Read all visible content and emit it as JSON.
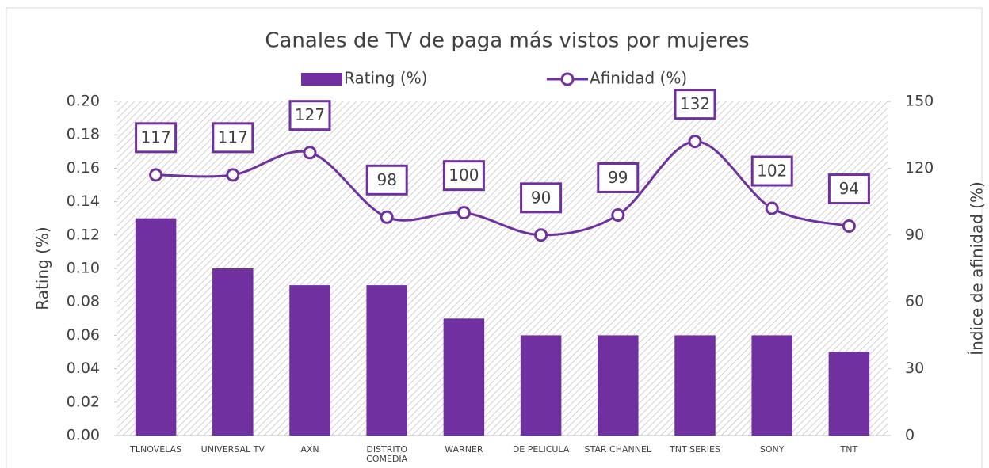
{
  "chart_data": {
    "type": "bar_line",
    "title": "Canales de TV de paga más vistos por mujeres",
    "categories": [
      "TLNOVELAS",
      "UNIVERSAL TV",
      "AXN",
      "DISTRITO COMEDIA",
      "WARNER",
      "DE PELICULA",
      "STAR CHANNEL",
      "TNT SERIES",
      "SONY",
      "TNT"
    ],
    "series": [
      {
        "name": "Rating (%)",
        "type": "bar",
        "color": "#7030a0",
        "values": [
          0.13,
          0.1,
          0.09,
          0.09,
          0.07,
          0.06,
          0.06,
          0.06,
          0.06,
          0.05
        ]
      },
      {
        "name": "Afinidad (%)",
        "type": "line",
        "axis": "y2",
        "color": "#7030a0",
        "values": [
          117,
          117,
          127,
          98,
          100,
          90,
          99,
          132,
          102,
          94
        ]
      }
    ],
    "ylabel": "Rating (%)",
    "y2label": "Índice de afinidad (%)",
    "ylim": [
      0,
      0.2
    ],
    "yticks": [
      {
        "value": 0,
        "label": "0.00"
      },
      {
        "value": 0.02,
        "label": "0.02"
      },
      {
        "value": 0.04,
        "label": "0.04"
      },
      {
        "value": 0.06,
        "label": "0.06"
      },
      {
        "value": 0.08,
        "label": "0.08"
      },
      {
        "value": 0.1,
        "label": "0.10"
      },
      {
        "value": 0.12,
        "label": "0.12"
      },
      {
        "value": 0.14,
        "label": "0.14"
      },
      {
        "value": 0.16,
        "label": "0.16"
      },
      {
        "value": 0.18,
        "label": "0.18"
      },
      {
        "value": 0.2,
        "label": "0.20"
      }
    ],
    "y2lim": [
      0,
      150
    ],
    "y2ticks": [
      0,
      30,
      60,
      90,
      120,
      150
    ],
    "legend": "top"
  }
}
